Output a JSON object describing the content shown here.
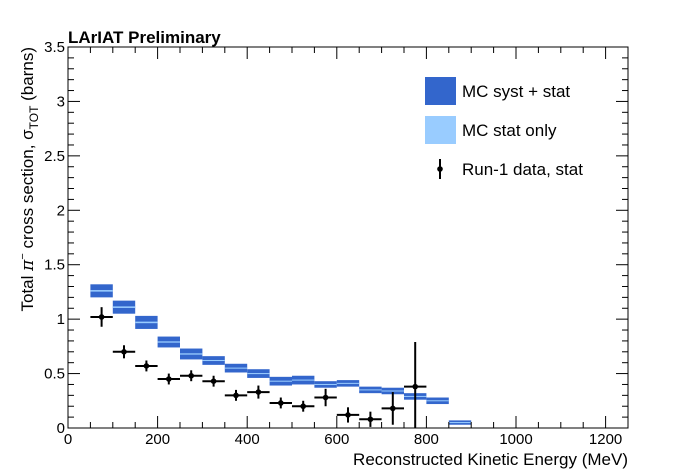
{
  "chart_data": {
    "type": "histogram_with_error_points",
    "title": "LArIAT Preliminary",
    "xlabel": "Reconstructed Kinetic Energy (MeV)",
    "ylabel": {
      "prefix": "Total ",
      "pi": "π",
      "minus": "−",
      "middle": " cross section, σ",
      "sub": "TOT",
      "suffix": " (barns)"
    },
    "xlim": [
      0,
      1250
    ],
    "ylim": [
      0,
      3.5
    ],
    "x_major_ticks": [
      0,
      200,
      400,
      600,
      800,
      1000,
      1200
    ],
    "x_tick_labels": [
      "0",
      "200",
      "400",
      "600",
      "800",
      "1000",
      "1200"
    ],
    "y_major_ticks": [
      0,
      0.5,
      1,
      1.5,
      2,
      2.5,
      3,
      3.5
    ],
    "y_tick_labels": [
      "0",
      "0.5",
      "1",
      "1.5",
      "2",
      "2.5",
      "3",
      "3.5"
    ],
    "legend_position": "top-right",
    "legend": [
      {
        "label": "MC syst + stat",
        "style": "box",
        "color": "#3366cc"
      },
      {
        "label": "MC stat only",
        "style": "box",
        "color": "#99ccff"
      },
      {
        "label": "Run-1 data, stat",
        "style": "marker",
        "color": "#000000"
      }
    ],
    "colors": {
      "mc_syst": "#3366cc",
      "mc_stat": "#99ccff",
      "data": "#000000"
    },
    "bin_width": 50,
    "mc_bins": [
      {
        "x": 75,
        "value": 1.26,
        "syst": 0.06
      },
      {
        "x": 125,
        "value": 1.11,
        "syst": 0.06
      },
      {
        "x": 175,
        "value": 0.97,
        "syst": 0.06
      },
      {
        "x": 225,
        "value": 0.79,
        "syst": 0.05
      },
      {
        "x": 275,
        "value": 0.68,
        "syst": 0.05
      },
      {
        "x": 325,
        "value": 0.62,
        "syst": 0.04
      },
      {
        "x": 375,
        "value": 0.55,
        "syst": 0.04
      },
      {
        "x": 425,
        "value": 0.5,
        "syst": 0.04
      },
      {
        "x": 475,
        "value": 0.43,
        "syst": 0.04
      },
      {
        "x": 525,
        "value": 0.44,
        "syst": 0.04
      },
      {
        "x": 575,
        "value": 0.4,
        "syst": 0.03
      },
      {
        "x": 625,
        "value": 0.41,
        "syst": 0.03
      },
      {
        "x": 675,
        "value": 0.35,
        "syst": 0.03
      },
      {
        "x": 725,
        "value": 0.34,
        "syst": 0.03
      },
      {
        "x": 775,
        "value": 0.29,
        "syst": 0.03
      },
      {
        "x": 825,
        "value": 0.25,
        "syst": 0.03
      },
      {
        "x": 875,
        "value": 0.05,
        "syst": 0.02
      }
    ],
    "data_points": [
      {
        "x": 75,
        "y": 1.02,
        "xerr": 25,
        "yerr": 0.09
      },
      {
        "x": 125,
        "y": 0.7,
        "xerr": 25,
        "yerr": 0.06
      },
      {
        "x": 175,
        "y": 0.57,
        "xerr": 25,
        "yerr": 0.05
      },
      {
        "x": 225,
        "y": 0.45,
        "xerr": 25,
        "yerr": 0.05
      },
      {
        "x": 275,
        "y": 0.48,
        "xerr": 25,
        "yerr": 0.05
      },
      {
        "x": 325,
        "y": 0.43,
        "xerr": 25,
        "yerr": 0.05
      },
      {
        "x": 375,
        "y": 0.3,
        "xerr": 25,
        "yerr": 0.05
      },
      {
        "x": 425,
        "y": 0.33,
        "xerr": 25,
        "yerr": 0.06
      },
      {
        "x": 475,
        "y": 0.23,
        "xerr": 25,
        "yerr": 0.05
      },
      {
        "x": 525,
        "y": 0.2,
        "xerr": 25,
        "yerr": 0.05
      },
      {
        "x": 575,
        "y": 0.28,
        "xerr": 25,
        "yerr": 0.08
      },
      {
        "x": 625,
        "y": 0.12,
        "xerr": 25,
        "yerr": 0.07
      },
      {
        "x": 675,
        "y": 0.08,
        "xerr": 25,
        "yerr": 0.07
      },
      {
        "x": 725,
        "y": 0.18,
        "xerr": 25,
        "yerr": 0.15
      },
      {
        "x": 775,
        "y": 0.38,
        "xerr": 25,
        "yerr": 0.41
      }
    ]
  }
}
